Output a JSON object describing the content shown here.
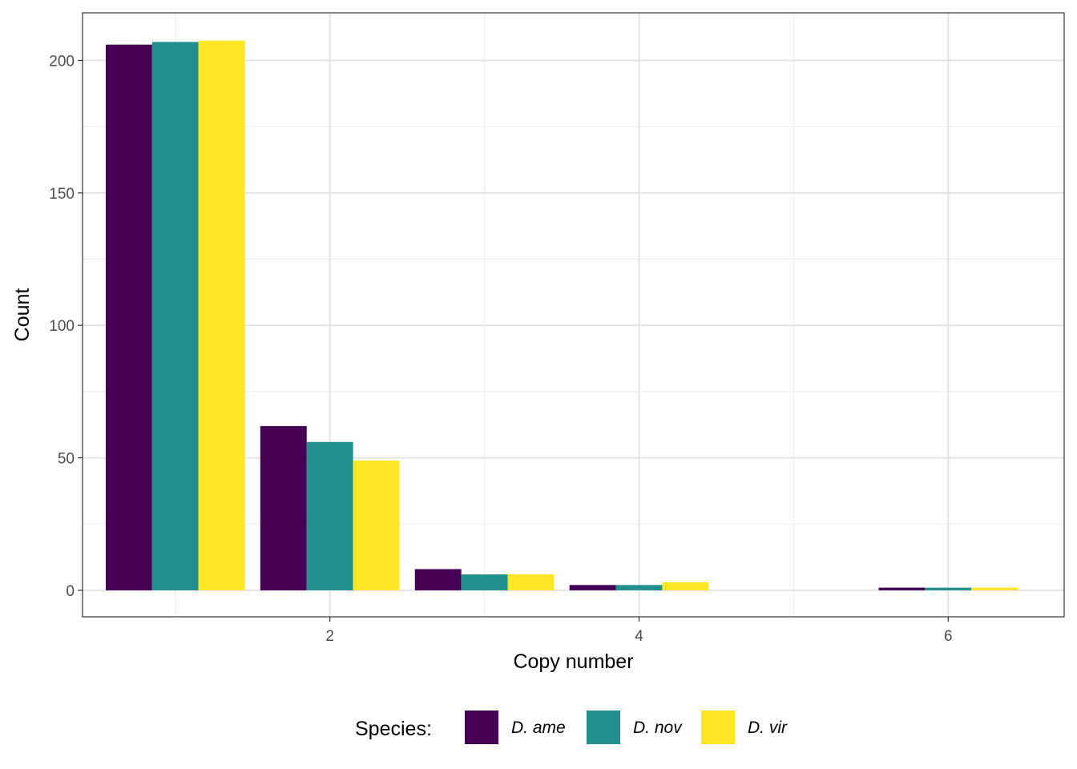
{
  "chart_data": {
    "type": "bar",
    "x": [
      1,
      2,
      3,
      4,
      5,
      6
    ],
    "series": [
      {
        "name": "D. ame",
        "color": "#440154",
        "values": [
          206,
          62,
          8,
          2,
          0,
          1
        ]
      },
      {
        "name": "D. nov",
        "color": "#21908C",
        "values": [
          207,
          56,
          6,
          2,
          0,
          1
        ]
      },
      {
        "name": "D. vir",
        "color": "#FDE725",
        "values": [
          207.5,
          49,
          6,
          3,
          0,
          1
        ]
      }
    ],
    "xlabel": "Copy number",
    "ylabel": "Count",
    "xlim": [
      0.4,
      6.75
    ],
    "ylim": [
      -10,
      218
    ],
    "x_ticks": [
      2,
      4,
      6
    ],
    "y_ticks": [
      0,
      50,
      100,
      150,
      200
    ],
    "grid": true,
    "legend": {
      "title": "Species:",
      "position": "bottom"
    }
  }
}
